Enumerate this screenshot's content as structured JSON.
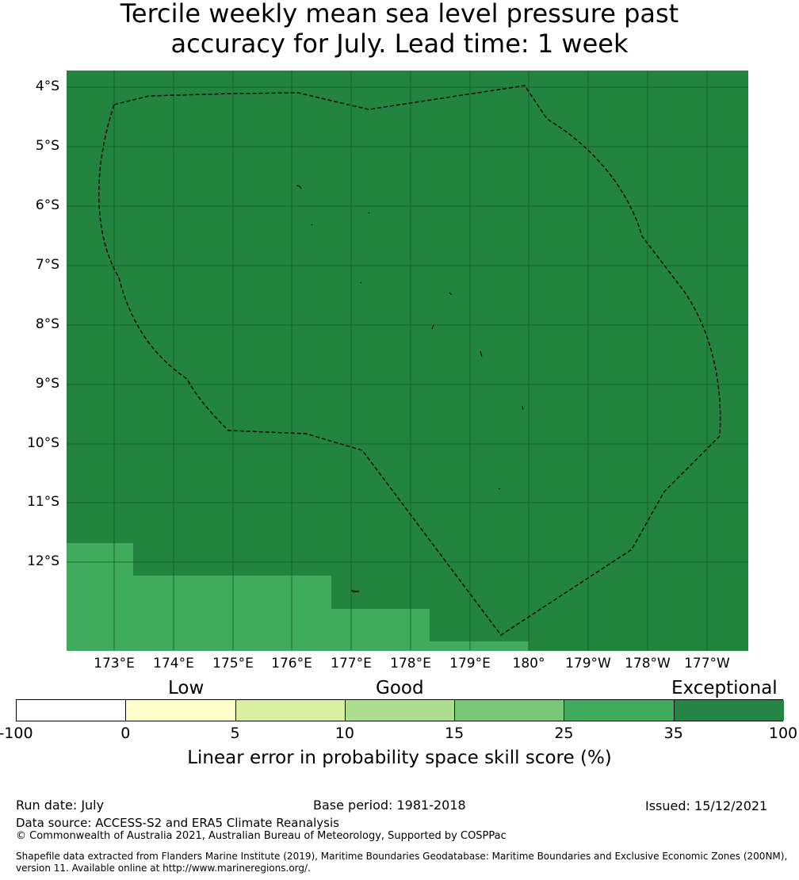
{
  "title": {
    "line1": "Tercile weekly mean sea level pressure past",
    "line2": "accuracy for July. Lead time: 1 week"
  },
  "map": {
    "lat_labels": [
      "4°S",
      "5°S",
      "6°S",
      "7°S",
      "8°S",
      "9°S",
      "10°S",
      "11°S",
      "12°S"
    ],
    "lon_labels": [
      "173°E",
      "174°E",
      "175°E",
      "176°E",
      "177°E",
      "178°E",
      "179°E",
      "180°",
      "179°W",
      "178°W",
      "177°W"
    ],
    "colors": {
      "exceptional": "#23843f",
      "good_high": "#40aa5d",
      "grid": "#145a28",
      "boundary": "#000000"
    },
    "fill_regions": [
      {
        "category": "25-35",
        "color": "#40aa5d"
      }
    ],
    "boundary_style": "dashed",
    "feature": "Tuvalu EEZ boundary"
  },
  "colorbar": {
    "categories": [
      "Low",
      "Good",
      "Exceptional"
    ],
    "ticks": [
      "-100",
      "0",
      "5",
      "10",
      "15",
      "25",
      "35",
      "100"
    ],
    "colors": [
      "#ffffff",
      "#ffffcc",
      "#d9f0a3",
      "#addd8e",
      "#78c679",
      "#41ab5d",
      "#238443"
    ],
    "label": "Linear error in probability space skill score (%)"
  },
  "footer": {
    "run_date": "Run date: July",
    "base_period": "Base period: 1981-2018",
    "issued": "Issued: 15/12/2021",
    "data_source": "Data source: ACCESS-S2 and ERA5 Climate Reanalysis",
    "copyright": "© Commonwealth of Australia 2021, Australian Bureau of Meteorology, Supported by COSPPac",
    "shapefile_line1": "Shapefile data extracted from Flanders Marine Institute (2019), Maritime Boundaries Geodatabase: Maritime Boundaries and Exclusive Economic Zones (200NM),",
    "shapefile_line2": "version 11. Available online at http://www.marineregions.org/."
  }
}
